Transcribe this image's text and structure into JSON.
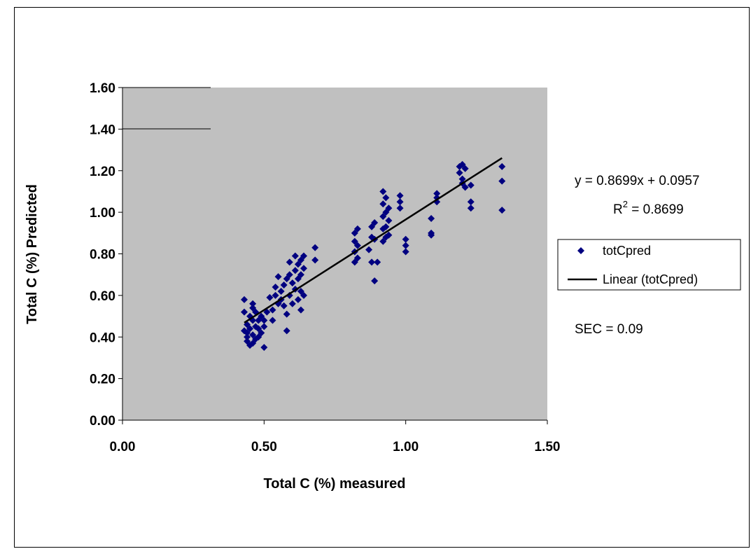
{
  "chart_data": {
    "type": "scatter",
    "xlabel": "Total C (%) measured",
    "ylabel": "Total C (%) Predicted",
    "xlim": [
      0,
      1.5
    ],
    "ylim": [
      0,
      1.6
    ],
    "xticks": [
      "0.00",
      "0.50",
      "1.00",
      "1.50"
    ],
    "xtick_values": [
      0,
      0.5,
      1.0,
      1.5
    ],
    "yticks": [
      "0.00",
      "0.20",
      "0.40",
      "0.60",
      "0.80",
      "1.00",
      "1.20",
      "1.40",
      "1.60"
    ],
    "ytick_values": [
      0,
      0.2,
      0.4,
      0.6,
      0.8,
      1.0,
      1.2,
      1.4,
      1.6
    ],
    "plot_background": "#c0c0c0",
    "grid": false,
    "legend_position": "right",
    "series": [
      {
        "name": "totCpred",
        "marker": "diamond",
        "color": "#000080",
        "points": [
          [
            0.43,
            0.58
          ],
          [
            0.43,
            0.52
          ],
          [
            0.43,
            0.43
          ],
          [
            0.44,
            0.46
          ],
          [
            0.44,
            0.42
          ],
          [
            0.44,
            0.4
          ],
          [
            0.44,
            0.38
          ],
          [
            0.45,
            0.36
          ],
          [
            0.45,
            0.5
          ],
          [
            0.45,
            0.44
          ],
          [
            0.46,
            0.56
          ],
          [
            0.46,
            0.54
          ],
          [
            0.46,
            0.48
          ],
          [
            0.46,
            0.41
          ],
          [
            0.46,
            0.37
          ],
          [
            0.47,
            0.45
          ],
          [
            0.47,
            0.39
          ],
          [
            0.47,
            0.52
          ],
          [
            0.48,
            0.48
          ],
          [
            0.48,
            0.44
          ],
          [
            0.48,
            0.4
          ],
          [
            0.49,
            0.5
          ],
          [
            0.49,
            0.42
          ],
          [
            0.5,
            0.45
          ],
          [
            0.5,
            0.35
          ],
          [
            0.5,
            0.48
          ],
          [
            0.51,
            0.52
          ],
          [
            0.52,
            0.59
          ],
          [
            0.53,
            0.53
          ],
          [
            0.53,
            0.48
          ],
          [
            0.54,
            0.64
          ],
          [
            0.54,
            0.6
          ],
          [
            0.55,
            0.56
          ],
          [
            0.55,
            0.69
          ],
          [
            0.56,
            0.62
          ],
          [
            0.56,
            0.58
          ],
          [
            0.57,
            0.65
          ],
          [
            0.57,
            0.55
          ],
          [
            0.58,
            0.51
          ],
          [
            0.58,
            0.43
          ],
          [
            0.58,
            0.68
          ],
          [
            0.59,
            0.76
          ],
          [
            0.59,
            0.7
          ],
          [
            0.59,
            0.6
          ],
          [
            0.6,
            0.66
          ],
          [
            0.6,
            0.56
          ],
          [
            0.61,
            0.79
          ],
          [
            0.61,
            0.72
          ],
          [
            0.61,
            0.63
          ],
          [
            0.62,
            0.75
          ],
          [
            0.62,
            0.68
          ],
          [
            0.62,
            0.58
          ],
          [
            0.63,
            0.77
          ],
          [
            0.63,
            0.7
          ],
          [
            0.63,
            0.62
          ],
          [
            0.63,
            0.53
          ],
          [
            0.64,
            0.79
          ],
          [
            0.64,
            0.73
          ],
          [
            0.64,
            0.6
          ],
          [
            0.68,
            0.83
          ],
          [
            0.68,
            0.77
          ],
          [
            0.82,
            0.9
          ],
          [
            0.82,
            0.86
          ],
          [
            0.82,
            0.81
          ],
          [
            0.82,
            0.76
          ],
          [
            0.83,
            0.92
          ],
          [
            0.83,
            0.84
          ],
          [
            0.83,
            0.78
          ],
          [
            0.87,
            0.82
          ],
          [
            0.88,
            0.88
          ],
          [
            0.88,
            0.93
          ],
          [
            0.88,
            0.76
          ],
          [
            0.89,
            0.95
          ],
          [
            0.89,
            0.87
          ],
          [
            0.89,
            0.67
          ],
          [
            0.9,
            0.76
          ],
          [
            0.92,
            1.1
          ],
          [
            0.92,
            1.04
          ],
          [
            0.92,
            0.98
          ],
          [
            0.92,
            0.92
          ],
          [
            0.92,
            0.86
          ],
          [
            0.93,
            1.07
          ],
          [
            0.93,
            1.0
          ],
          [
            0.93,
            0.93
          ],
          [
            0.93,
            0.88
          ],
          [
            0.94,
            1.02
          ],
          [
            0.94,
            0.96
          ],
          [
            0.94,
            0.89
          ],
          [
            0.98,
            1.08
          ],
          [
            0.98,
            1.05
          ],
          [
            0.98,
            1.02
          ],
          [
            1.0,
            0.87
          ],
          [
            1.0,
            0.84
          ],
          [
            1.0,
            0.81
          ],
          [
            1.09,
            0.97
          ],
          [
            1.09,
            0.9
          ],
          [
            1.09,
            0.89
          ],
          [
            1.11,
            1.09
          ],
          [
            1.11,
            1.07
          ],
          [
            1.11,
            1.05
          ],
          [
            1.19,
            1.22
          ],
          [
            1.19,
            1.19
          ],
          [
            1.2,
            1.23
          ],
          [
            1.2,
            1.16
          ],
          [
            1.2,
            1.14
          ],
          [
            1.21,
            1.21
          ],
          [
            1.21,
            1.12
          ],
          [
            1.23,
            1.13
          ],
          [
            1.23,
            1.05
          ],
          [
            1.23,
            1.02
          ],
          [
            1.34,
            1.22
          ],
          [
            1.34,
            1.15
          ],
          [
            1.34,
            1.01
          ]
        ]
      },
      {
        "name": "Linear (totCpred)",
        "type": "line",
        "color": "#000000",
        "x": [
          0.43,
          1.34
        ],
        "y": [
          0.469,
          1.261
        ]
      }
    ],
    "annotations": {
      "equation": "y = 0.8699x + 0.0957",
      "r2_label": "R",
      "r2_exp": "2",
      "r2_value": " = 0.8699",
      "sec": "SEC = 0.09"
    }
  }
}
